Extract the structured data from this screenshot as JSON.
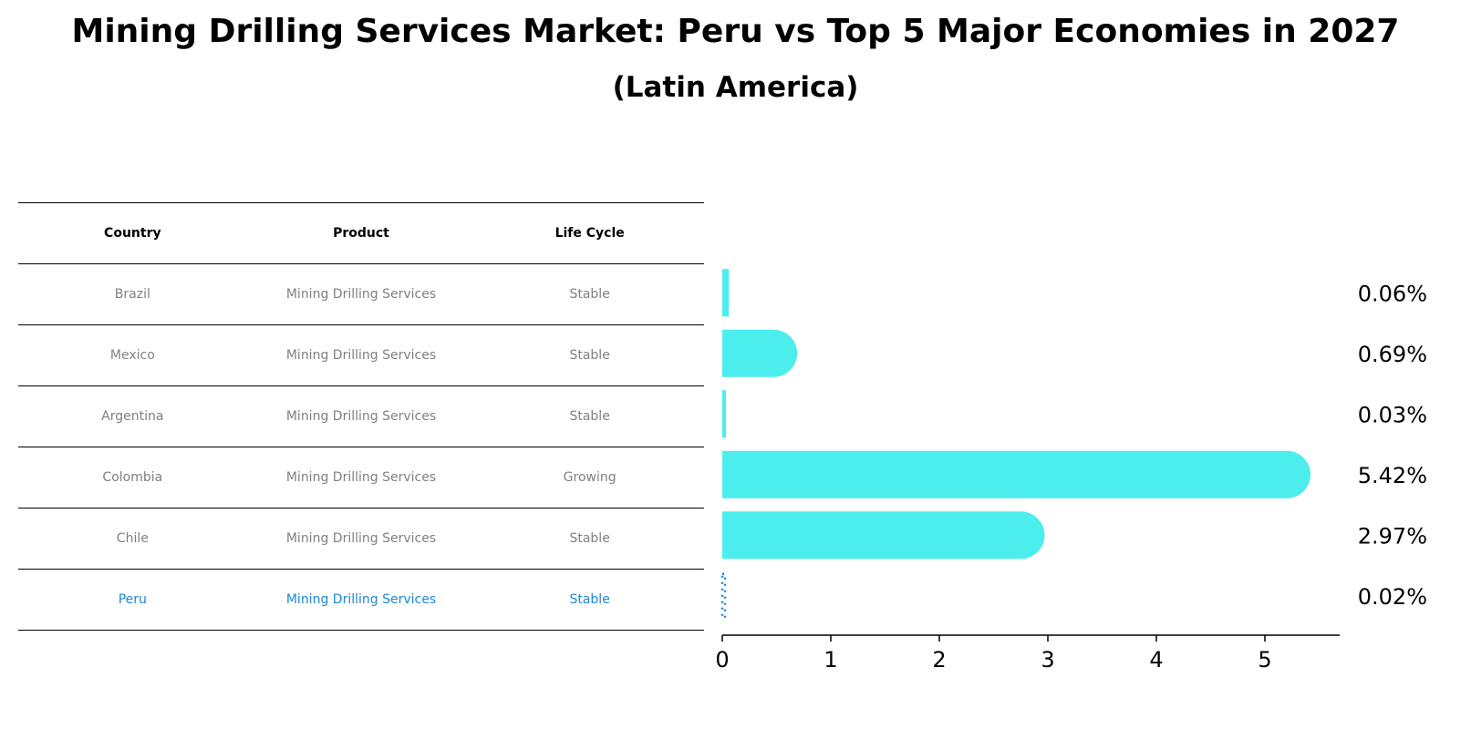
{
  "title": "Mining Drilling Services Market: Peru vs Top 5 Major Economies in 2027",
  "subtitle": "(Latin America)",
  "table": {
    "headers": [
      "Country",
      "Product",
      "Life Cycle"
    ],
    "rows": [
      {
        "country": "Brazil",
        "product": "Mining Drilling Services",
        "life_cycle": "Stable"
      },
      {
        "country": "Mexico",
        "product": "Mining Drilling Services",
        "life_cycle": "Stable"
      },
      {
        "country": "Argentina",
        "product": "Mining Drilling Services",
        "life_cycle": "Stable"
      },
      {
        "country": "Colombia",
        "product": "Mining Drilling Services",
        "life_cycle": "Growing"
      },
      {
        "country": "Chile",
        "product": "Mining Drilling Services",
        "life_cycle": "Stable"
      },
      {
        "country": "Peru",
        "product": "Mining Drilling Services",
        "life_cycle": "Stable"
      }
    ]
  },
  "colors": {
    "bar": "#4beded",
    "highlight": "#1f86d6",
    "muted_text": "#808080"
  },
  "chart_data": {
    "type": "bar",
    "orientation": "horizontal",
    "categories": [
      "Brazil",
      "Mexico",
      "Argentina",
      "Colombia",
      "Chile",
      "Peru"
    ],
    "values": [
      0.06,
      0.69,
      0.03,
      5.42,
      2.97,
      0.02
    ],
    "value_labels": [
      "0.06%",
      "0.69%",
      "0.03%",
      "5.42%",
      "2.97%",
      "0.02%"
    ],
    "highlight_category": "Peru",
    "xlim": [
      0,
      5.7
    ],
    "xticks": [
      0,
      1,
      2,
      3,
      4,
      5
    ],
    "xlabel": "",
    "ylabel": "",
    "grid": false
  }
}
